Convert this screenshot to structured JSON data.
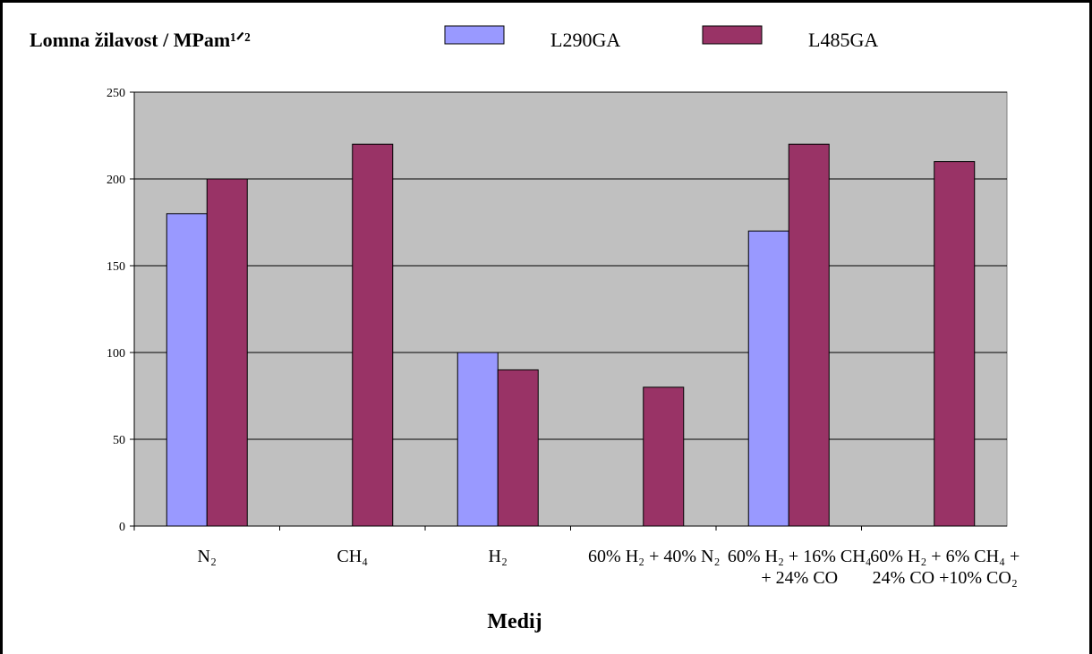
{
  "chart_data": {
    "type": "bar",
    "title": "Lomna žilavost  / MPam¹ᐟ²",
    "x_label": "Medij",
    "categories": [
      "N₂",
      "CH₄",
      "H₂",
      "60% H₂ + 40% N₂",
      "60% H₂ + 16% CH₄ + 24% CO",
      "60% H₂ + 6% CH₄ + 24% CO +10% CO₂"
    ],
    "series": [
      {
        "name": "L290GA",
        "color": "#9999ff",
        "values": [
          180,
          null,
          100,
          null,
          170,
          null
        ]
      },
      {
        "name": "L485GA",
        "color": "#993366",
        "values": [
          200,
          220,
          90,
          80,
          220,
          210
        ]
      }
    ],
    "ylim": [
      0,
      250
    ],
    "yticks": [
      0,
      50,
      100,
      150,
      200,
      250
    ],
    "grid": true
  }
}
